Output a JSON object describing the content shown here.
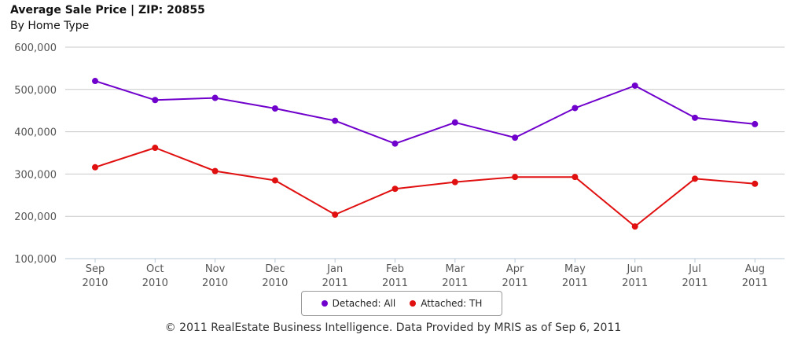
{
  "header": {
    "title": "Average Sale Price | ZIP: 20855",
    "subtitle": "By Home Type"
  },
  "footer": {
    "text": "© 2011 RealEstate Business Intelligence. Data Provided by MRIS as of Sep 6, 2011"
  },
  "chart_data": {
    "type": "line",
    "title": "Average Sale Price | ZIP: 20855",
    "subtitle": "By Home Type",
    "xlabel": "",
    "ylabel": "",
    "categories": [
      [
        "Sep",
        "2010"
      ],
      [
        "Oct",
        "2010"
      ],
      [
        "Nov",
        "2010"
      ],
      [
        "Dec",
        "2010"
      ],
      [
        "Jan",
        "2011"
      ],
      [
        "Feb",
        "2011"
      ],
      [
        "Mar",
        "2011"
      ],
      [
        "Apr",
        "2011"
      ],
      [
        "May",
        "2011"
      ],
      [
        "Jun",
        "2011"
      ],
      [
        "Jul",
        "2011"
      ],
      [
        "Aug",
        "2011"
      ]
    ],
    "yticks": [
      "100,000",
      "200,000",
      "300,000",
      "400,000",
      "500,000",
      "600,000"
    ],
    "ylim": [
      100000,
      600000
    ],
    "grid": true,
    "legend_position": "bottom-center",
    "series": [
      {
        "name": "Detached: All",
        "color": "#7000cc",
        "values": [
          520000,
          475000,
          480000,
          455000,
          426000,
          372000,
          422000,
          386000,
          456000,
          509000,
          433000,
          418000
        ]
      },
      {
        "name": "Attached: TH",
        "color": "#e01010",
        "values": [
          316000,
          362000,
          307000,
          285000,
          204000,
          265000,
          281000,
          293000,
          293000,
          176000,
          289000,
          277000
        ]
      }
    ]
  }
}
